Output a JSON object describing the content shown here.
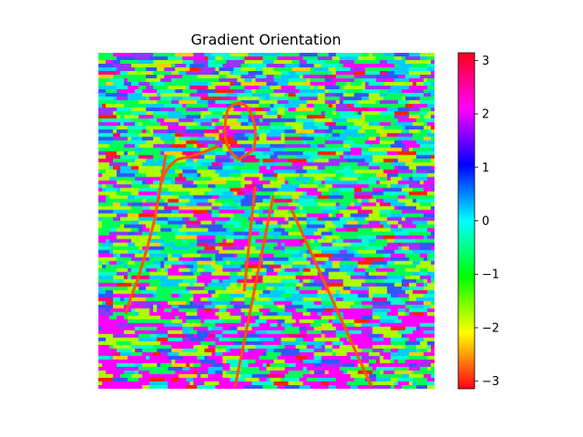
{
  "chart_data": [
    {
      "type": "heatmap",
      "title": "Gradient Orientation",
      "xlabel": "",
      "ylabel": "",
      "axes_visible": false,
      "description_of_values": "per-pixel gradient orientation in radians",
      "value_range": [
        -3.14159,
        3.14159
      ],
      "colormap": "hsv",
      "colorbar": {
        "ticks": [
          3,
          2,
          1,
          0,
          -1,
          -2,
          -3
        ],
        "tick_labels": [
          "3",
          "2",
          "1",
          "0",
          "−1",
          "−2",
          "−3"
        ],
        "colors": [
          "#ff0000",
          "#ffff00",
          "#00ff00",
          "#00ffff",
          "#0000ff",
          "#ff00ff",
          "#ff0018"
        ]
      }
    }
  ]
}
